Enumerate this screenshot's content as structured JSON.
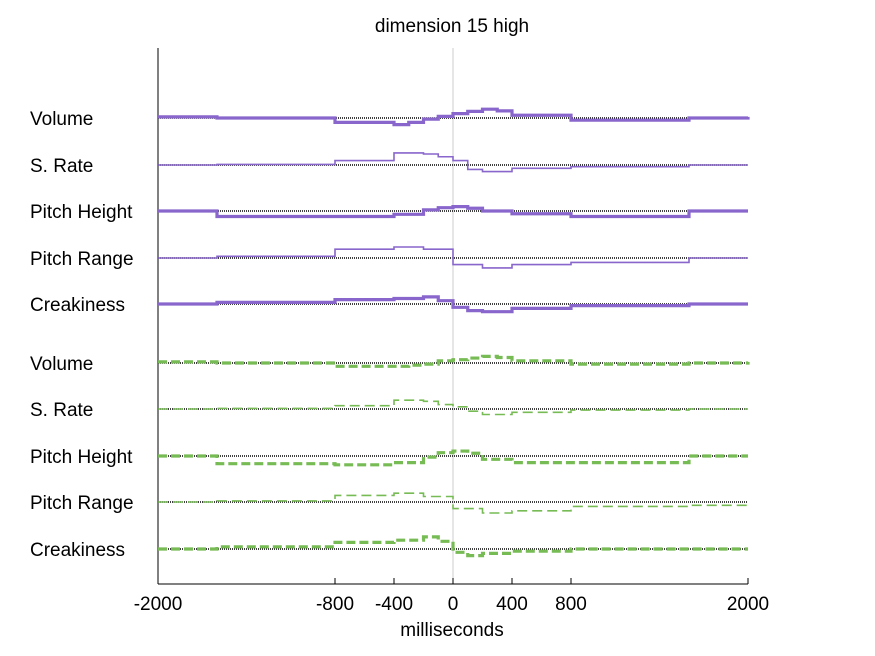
{
  "chart_data": {
    "type": "line",
    "title": "dimension 15 high",
    "xlabel": "milliseconds",
    "ylabel": "",
    "xlim": [
      -2000,
      2000
    ],
    "x_ticks": [
      -2000,
      -800,
      -400,
      0,
      400,
      800,
      2000
    ],
    "x_tick_labels": [
      "-2000",
      "-800",
      "-400",
      "0",
      "400",
      "800",
      "2000"
    ],
    "zero_line": 0,
    "colors": {
      "purple": "#8866cc",
      "green": "#77bb55",
      "zero_line": "#cccccc",
      "baseline": "#000000"
    },
    "groups": [
      {
        "color": "purple",
        "line_style": "solid",
        "series": [
          {
            "name": "Volume",
            "weight": "bold",
            "x": [
              -2000,
              -1600,
              -800,
              -400,
              -300,
              -200,
              -100,
              0,
              100,
              200,
              300,
              400,
              800,
              1600,
              2000
            ],
            "y": [
              0.2,
              0.0,
              -0.8,
              -1.2,
              -0.8,
              -0.2,
              0.3,
              0.8,
              1.2,
              1.6,
              1.3,
              0.5,
              -0.4,
              0.0,
              0.2
            ]
          },
          {
            "name": "S. Rate",
            "weight": "thin",
            "x": [
              -2000,
              -1600,
              -800,
              -400,
              -200,
              -100,
              0,
              100,
              200,
              400,
              800,
              1600,
              2000
            ],
            "y": [
              0.0,
              0.1,
              0.8,
              2.2,
              2.0,
              1.5,
              0.8,
              -0.8,
              -1.2,
              -0.6,
              -0.3,
              0.0,
              0.0
            ]
          },
          {
            "name": "Pitch Height",
            "weight": "bold",
            "x": [
              -2000,
              -1600,
              -800,
              -400,
              -200,
              -100,
              0,
              100,
              200,
              400,
              800,
              1600,
              2000
            ],
            "y": [
              0.0,
              -1.0,
              -1.0,
              -0.6,
              0.2,
              0.6,
              0.8,
              0.5,
              0.0,
              -0.5,
              -1.0,
              0.0,
              0.0
            ]
          },
          {
            "name": "Pitch Range",
            "weight": "thin",
            "x": [
              -2000,
              -1600,
              -800,
              -400,
              -200,
              0,
              200,
              400,
              800,
              1600,
              2000
            ],
            "y": [
              0.0,
              0.3,
              1.6,
              2.0,
              1.6,
              -1.2,
              -1.8,
              -1.2,
              -0.8,
              0.0,
              0.0
            ]
          },
          {
            "name": "Creakiness",
            "weight": "bold",
            "x": [
              -2000,
              -1600,
              -800,
              -400,
              -200,
              -100,
              0,
              100,
              200,
              400,
              800,
              1600,
              2000
            ],
            "y": [
              0.0,
              0.3,
              0.8,
              1.0,
              1.3,
              0.6,
              -0.6,
              -1.2,
              -1.4,
              -0.8,
              -0.3,
              0.0,
              0.0
            ]
          }
        ]
      },
      {
        "color": "green",
        "line_style": "dashed",
        "series": [
          {
            "name": "Volume",
            "weight": "bold",
            "x": [
              -2000,
              -1600,
              -800,
              -400,
              -300,
              -200,
              -100,
              0,
              100,
              200,
              300,
              400,
              800,
              1600,
              2000
            ],
            "y": [
              0.2,
              0.0,
              -0.6,
              -0.6,
              -0.4,
              -0.2,
              0.4,
              0.6,
              0.9,
              1.2,
              1.0,
              0.4,
              -0.2,
              0.0,
              0.2
            ]
          },
          {
            "name": "S. Rate",
            "weight": "thin",
            "x": [
              -2000,
              -1600,
              -800,
              -400,
              -200,
              -100,
              0,
              100,
              200,
              400,
              800,
              1600,
              2000
            ],
            "y": [
              0.0,
              0.1,
              0.6,
              1.6,
              1.4,
              0.8,
              0.4,
              -0.4,
              -1.0,
              -0.6,
              -0.2,
              0.0,
              0.0
            ]
          },
          {
            "name": "Pitch Height",
            "weight": "bold",
            "x": [
              -2000,
              -1600,
              -800,
              -400,
              -200,
              -100,
              0,
              100,
              200,
              400,
              800,
              1600,
              2000
            ],
            "y": [
              0.0,
              -1.4,
              -1.6,
              -1.2,
              -0.2,
              0.6,
              0.9,
              0.5,
              -0.6,
              -1.2,
              -1.2,
              0.0,
              0.0
            ]
          },
          {
            "name": "Pitch Range",
            "weight": "thin",
            "x": [
              -2000,
              -1600,
              -800,
              -400,
              -200,
              0,
              200,
              400,
              800,
              1600,
              2000
            ],
            "y": [
              0.0,
              0.2,
              1.2,
              1.6,
              1.0,
              -1.2,
              -2.0,
              -1.6,
              -0.8,
              -0.6,
              0.0
            ]
          },
          {
            "name": "Creakiness",
            "weight": "bold",
            "x": [
              -2000,
              -1600,
              -800,
              -400,
              -200,
              -100,
              0,
              100,
              200,
              400,
              800,
              1600,
              2000
            ],
            "y": [
              0.0,
              0.4,
              1.2,
              1.6,
              2.2,
              1.4,
              -0.6,
              -1.2,
              -0.8,
              -0.4,
              0.0,
              0.0,
              0.0
            ]
          }
        ]
      }
    ]
  }
}
